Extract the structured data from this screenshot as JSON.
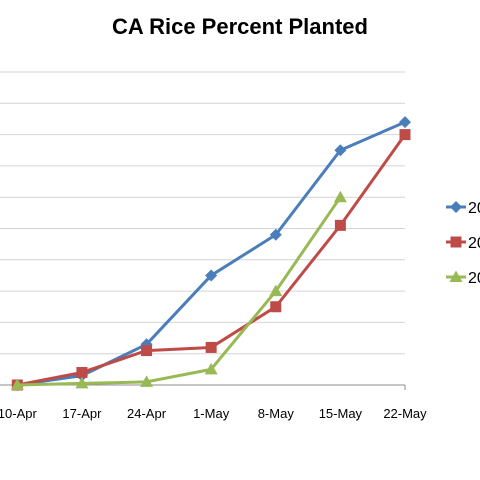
{
  "chart_data": {
    "type": "line",
    "title": "CA Rice Percent Planted",
    "xlabel": "",
    "ylabel": "",
    "categories": [
      "10-Apr",
      "17-Apr",
      "24-Apr",
      "1-May",
      "8-May",
      "15-May",
      "22-May"
    ],
    "ylim": [
      0,
      100
    ],
    "grid": true,
    "legend_position": "right",
    "series": [
      {
        "name": "20",
        "color": "#4A7EBB",
        "marker": "diamond",
        "values": [
          0,
          3,
          13,
          35,
          48,
          75,
          84
        ]
      },
      {
        "name": "20",
        "color": "#BE4B48",
        "marker": "square",
        "values": [
          0,
          4,
          11,
          12,
          25,
          51,
          80
        ]
      },
      {
        "name": "20",
        "color": "#98B954",
        "marker": "triangle",
        "values": [
          0,
          0.5,
          1,
          5,
          30,
          60,
          null
        ]
      }
    ]
  }
}
